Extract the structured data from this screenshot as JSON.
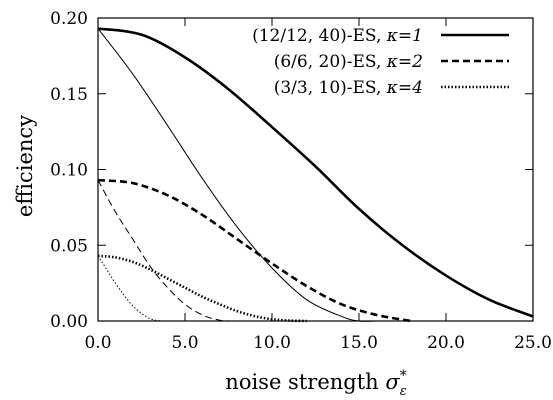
{
  "chart_data": {
    "type": "line",
    "xlabel": "noise strength σ*ε",
    "xlabel_main": "noise strength ",
    "xlabel_symbol": "σ",
    "xlabel_sup": "*",
    "xlabel_sub": "ε",
    "ylabel": "efficiency",
    "xlim": [
      0,
      25
    ],
    "ylim": [
      0,
      0.2
    ],
    "x_ticks": [
      0,
      5,
      10,
      15,
      20,
      25
    ],
    "x_tick_labels": [
      "0.0",
      "5.0",
      "10.0",
      "15.0",
      "20.0",
      "25.0"
    ],
    "y_ticks": [
      0,
      0.05,
      0.1,
      0.15,
      0.2
    ],
    "y_tick_labels": [
      "0.00",
      "0.05",
      "0.10",
      "0.15",
      "0.20"
    ],
    "grid": false,
    "legend_position": "top-right",
    "series": [
      {
        "name": "(12/12, 40)-ES, κ=1",
        "legend_label": "(12/12, 40)-ES, ",
        "kappa": "κ=1",
        "style": "solid",
        "weight": "thick",
        "x": [
          0,
          2.5,
          5,
          7.5,
          10,
          12.5,
          15,
          17.5,
          20,
          22.5,
          25
        ],
        "y": [
          0.193,
          0.189,
          0.174,
          0.153,
          0.128,
          0.102,
          0.074,
          0.05,
          0.03,
          0.014,
          0.003
        ]
      },
      {
        "name": "(6/6, 20)-ES, κ=2",
        "legend_label": "(6/6, 20)-ES, ",
        "kappa": "κ=2",
        "style": "dashed",
        "weight": "thick",
        "x": [
          0,
          2,
          4,
          6,
          8,
          10,
          12,
          14,
          16,
          18
        ],
        "y": [
          0.093,
          0.091,
          0.083,
          0.07,
          0.054,
          0.038,
          0.023,
          0.011,
          0.004,
          0.0
        ]
      },
      {
        "name": "(3/3, 10)-ES, κ=4",
        "legend_label": "(3/3, 10)-ES, ",
        "kappa": "κ=4",
        "style": "dotted",
        "weight": "thick",
        "x": [
          0,
          1,
          2,
          3,
          4,
          5,
          6,
          7,
          8,
          9,
          10,
          11,
          12
        ],
        "y": [
          0.043,
          0.042,
          0.039,
          0.034,
          0.028,
          0.022,
          0.016,
          0.011,
          0.0065,
          0.0032,
          0.0012,
          0.0003,
          0.0
        ]
      },
      {
        "style": "solid",
        "weight": "thin",
        "x": [
          0,
          2,
          4,
          6,
          8,
          10,
          12,
          14,
          15,
          16
        ],
        "y": [
          0.193,
          0.163,
          0.129,
          0.094,
          0.062,
          0.035,
          0.014,
          0.003,
          0.0,
          0.0
        ]
      },
      {
        "style": "dashed",
        "weight": "thin",
        "x": [
          0,
          1,
          2,
          3,
          4,
          5,
          6,
          7,
          8
        ],
        "y": [
          0.093,
          0.072,
          0.054,
          0.036,
          0.022,
          0.011,
          0.004,
          0.0005,
          0.0
        ]
      },
      {
        "style": "dotted",
        "weight": "thin",
        "x": [
          0,
          0.5,
          1,
          1.5,
          2,
          2.5,
          3,
          3.5,
          4
        ],
        "y": [
          0.043,
          0.034,
          0.025,
          0.017,
          0.01,
          0.005,
          0.0015,
          0.0002,
          0.0
        ]
      }
    ]
  }
}
